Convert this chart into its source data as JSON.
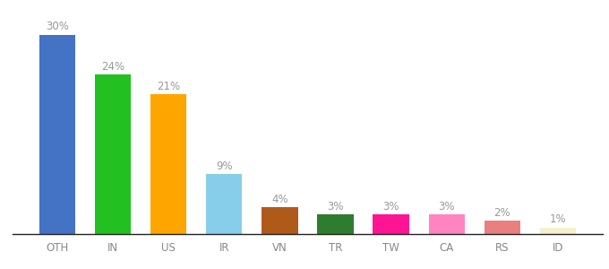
{
  "categories": [
    "OTH",
    "IN",
    "US",
    "IR",
    "VN",
    "TR",
    "TW",
    "CA",
    "RS",
    "ID"
  ],
  "values": [
    30,
    24,
    21,
    9,
    4,
    3,
    3,
    3,
    2,
    1
  ],
  "labels": [
    "30%",
    "24%",
    "21%",
    "9%",
    "4%",
    "3%",
    "3%",
    "3%",
    "2%",
    "1%"
  ],
  "bar_colors": [
    "#4472C4",
    "#22C020",
    "#FFA500",
    "#87CEEB",
    "#B05A1A",
    "#2E7D2E",
    "#FF1493",
    "#FF85C0",
    "#E88080",
    "#F5F0D0"
  ],
  "ylim": [
    0,
    34
  ],
  "label_color": "#999999",
  "label_fontsize": 8.5,
  "tick_fontsize": 8.5,
  "tick_color": "#888888",
  "bar_width": 0.65,
  "background_color": "#ffffff"
}
